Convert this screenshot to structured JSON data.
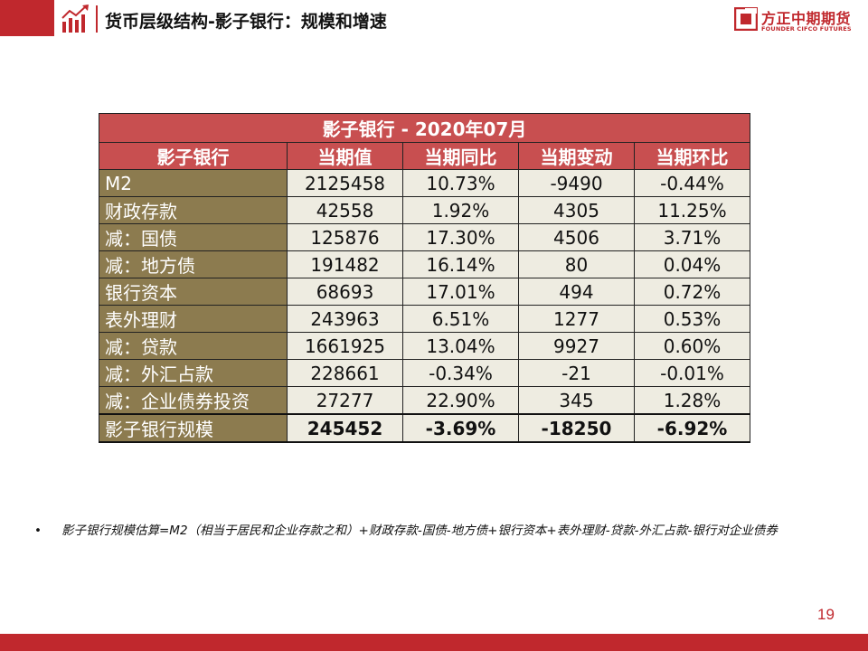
{
  "header": {
    "title": "货币层级结构-影子银行：规模和增速"
  },
  "logo": {
    "name_cn": "方正中期期货",
    "name_en": "FOUNDER CIFCO FUTURES",
    "brand_color": "#c0282d"
  },
  "table": {
    "title": "影子银行 - 2020年07月",
    "columns": [
      "影子银行",
      "当期值",
      "当期同比",
      "当期变动",
      "当期环比"
    ],
    "rows": [
      {
        "label": "M2",
        "value": "2125458",
        "yoy": "10.73%",
        "change": "-9490",
        "mom": "-0.44%"
      },
      {
        "label": "财政存款",
        "value": "42558",
        "yoy": "1.92%",
        "change": "4305",
        "mom": "11.25%"
      },
      {
        "label": "减：国债",
        "value": "125876",
        "yoy": "17.30%",
        "change": "4506",
        "mom": "3.71%"
      },
      {
        "label": "减：地方债",
        "value": "191482",
        "yoy": "16.14%",
        "change": "80",
        "mom": "0.04%"
      },
      {
        "label": "银行资本",
        "value": "68693",
        "yoy": "17.01%",
        "change": "494",
        "mom": "0.72%"
      },
      {
        "label": "表外理财",
        "value": "243963",
        "yoy": "6.51%",
        "change": "1277",
        "mom": "0.53%"
      },
      {
        "label": "减：贷款",
        "value": "1661925",
        "yoy": "13.04%",
        "change": "9927",
        "mom": "0.60%"
      },
      {
        "label": "减：外汇占款",
        "value": "228661",
        "yoy": "-0.34%",
        "change": "-21",
        "mom": "-0.01%"
      },
      {
        "label": "减：企业债券投资",
        "value": "27277",
        "yoy": "22.90%",
        "change": "345",
        "mom": "1.28%"
      }
    ],
    "total": {
      "label": "影子银行规模",
      "value": "245452",
      "yoy": "-3.69%",
      "change": "-18250",
      "mom": "-6.92%"
    }
  },
  "note": {
    "bullet": "•",
    "text": "影子银行规模估算=M2（相当于居民和企业存款之和）+财政存款-国债-地方债+银行资本+表外理财-贷款-外汇占款-银行对企业债券"
  },
  "page_number": "19"
}
